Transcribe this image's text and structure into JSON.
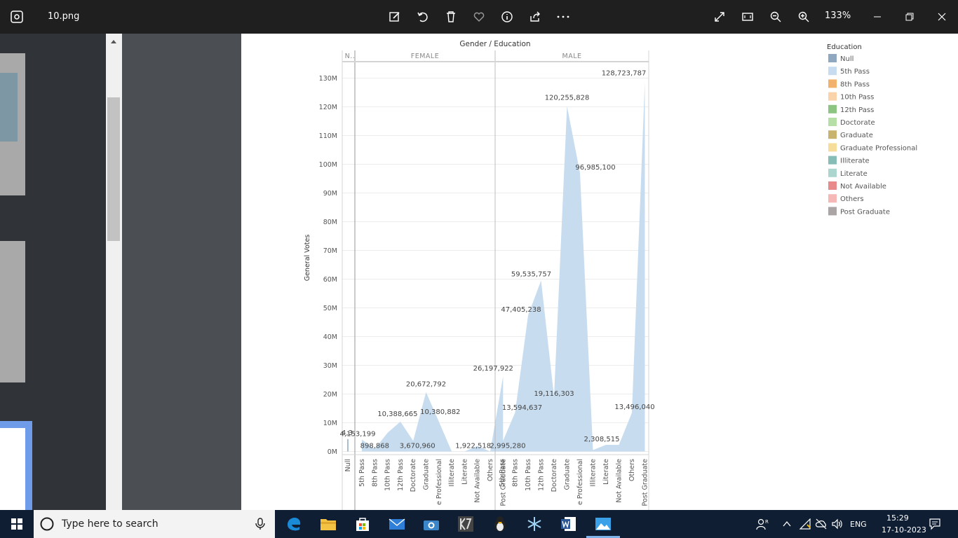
{
  "window": {
    "file_name": "10.png",
    "zoom": "133%",
    "toolbar": [
      "edit-image",
      "rotate",
      "delete",
      "favorite",
      "info",
      "share",
      "more"
    ],
    "window_controls": [
      "fullscreen",
      "fit-to-window",
      "zoom-out",
      "zoom-in",
      "minimize",
      "restore",
      "close"
    ]
  },
  "taskbar": {
    "search_placeholder": "Type here to search",
    "language": "ENG",
    "time": "15:29",
    "date": "17-10-2023",
    "apps": [
      "edge",
      "file-explorer",
      "store",
      "mail",
      "camera",
      "app-k7",
      "linux-app",
      "settings-app",
      "word",
      "photos"
    ]
  },
  "chart_data": {
    "type": "area",
    "title": "Gender / Education",
    "ylabel": "General Votes",
    "panels": [
      "N..",
      "FEMALE",
      "MALE"
    ],
    "ylim": [
      0,
      135000000
    ],
    "yticks": [
      "0M",
      "10M",
      "20M",
      "30M",
      "40M",
      "50M",
      "60M",
      "70M",
      "80M",
      "90M",
      "100M",
      "110M",
      "120M",
      "130M"
    ],
    "categories": [
      "5th Pass",
      "8th Pass",
      "10th Pass",
      "12th Pass",
      "Doctorate",
      "Graduate",
      "Graduate Professional",
      "Illiterate",
      "Literate",
      "Not Available",
      "Others",
      "Post Graduate"
    ],
    "category_tick_labels": [
      "5th Pass",
      "8th Pass",
      "10th Pass",
      "12th Pass",
      "Doctorate",
      "Graduate",
      "e Professional",
      "Illiterate",
      "Literate",
      "Not Available",
      "Others",
      "Post Graduate"
    ],
    "null_panel": {
      "categories": [
        "Null"
      ],
      "values": [
        4300000
      ],
      "label": "4,3"
    },
    "series": [
      {
        "name": "FEMALE",
        "values": [
          4153199,
          898868,
          6500000,
          10388665,
          3670960,
          20672792,
          10380882,
          0,
          0,
          1922518,
          0,
          26197922
        ],
        "labels": [
          "4,153,199",
          "898,868",
          "",
          "10,388,665",
          "3,670,960",
          "20,672,792",
          "10,380,882",
          "",
          "",
          "1,922,518",
          "",
          "26,197,922"
        ]
      },
      {
        "name": "MALE",
        "values": [
          2995280,
          13594637,
          47405238,
          59535757,
          19116303,
          120255828,
          96985100,
          500000,
          2308515,
          2300000,
          13496040,
          128723787
        ],
        "labels": [
          "2,995,280",
          "13,594,637",
          "47,405,238",
          "59,535,757",
          "19,116,303",
          "120,255,828",
          "96,985,100",
          "",
          "2,308,515",
          "",
          "13,496,040",
          "128,723,787"
        ]
      }
    ],
    "legend": {
      "title": "Education",
      "position": "right",
      "entries": [
        {
          "label": "Null",
          "color": "#8fa8c0"
        },
        {
          "label": "5th Pass",
          "color": "#c7dcef"
        },
        {
          "label": "8th Pass",
          "color": "#f2b26d"
        },
        {
          "label": "10th Pass",
          "color": "#fbd3a8"
        },
        {
          "label": "12th Pass",
          "color": "#8cc581"
        },
        {
          "label": "Doctorate",
          "color": "#b6dfa7"
        },
        {
          "label": "Graduate",
          "color": "#c9b46d"
        },
        {
          "label": "Graduate Professional",
          "color": "#f6de9a"
        },
        {
          "label": "Illiterate",
          "color": "#86bdb7"
        },
        {
          "label": "Literate",
          "color": "#abd6d0"
        },
        {
          "label": "Not Available",
          "color": "#e8898c"
        },
        {
          "label": "Others",
          "color": "#f6b8b7"
        },
        {
          "label": "Post Graduate",
          "color": "#aba5a6"
        }
      ]
    },
    "area_color": "#c7dcef"
  }
}
